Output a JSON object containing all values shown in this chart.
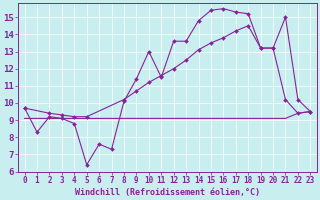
{
  "xlabel": "Windchill (Refroidissement éolien,°C)",
  "bg_color": "#c8eef0",
  "line_color": "#882299",
  "xlim_min": -0.5,
  "xlim_max": 23.5,
  "ylim_min": 6,
  "ylim_max": 15.8,
  "xticks": [
    0,
    1,
    2,
    3,
    4,
    5,
    6,
    7,
    8,
    9,
    10,
    11,
    12,
    13,
    14,
    15,
    16,
    17,
    18,
    19,
    20,
    21,
    22,
    23
  ],
  "yticks": [
    6,
    7,
    8,
    9,
    10,
    11,
    12,
    13,
    14,
    15
  ],
  "line1_x": [
    0,
    1,
    2,
    3,
    4,
    5,
    6,
    7,
    8,
    9,
    10,
    11,
    12,
    13,
    14,
    15,
    16,
    17,
    18,
    19,
    20,
    21,
    22,
    23
  ],
  "line1_y": [
    9.7,
    8.3,
    9.2,
    9.1,
    8.8,
    6.4,
    7.6,
    7.3,
    10.1,
    11.4,
    13.0,
    11.5,
    13.6,
    13.6,
    14.8,
    15.4,
    15.5,
    15.3,
    15.2,
    13.2,
    13.2,
    10.2,
    9.4,
    9.5
  ],
  "line2_x": [
    0,
    21,
    22,
    23
  ],
  "line2_y": [
    9.1,
    9.1,
    9.4,
    9.5
  ],
  "line3_x": [
    0,
    2,
    3,
    4,
    5,
    8,
    9,
    10,
    11,
    12,
    13,
    14,
    15,
    16,
    17,
    18,
    19,
    20,
    21,
    22,
    23
  ],
  "line3_y": [
    9.7,
    9.4,
    9.3,
    9.2,
    9.2,
    10.2,
    10.7,
    11.2,
    11.6,
    12.0,
    12.5,
    13.1,
    13.5,
    13.8,
    14.2,
    14.5,
    13.2,
    13.2,
    15.0,
    10.2,
    9.5
  ],
  "xlabel_fontsize": 6,
  "tick_fontsize": 5.5,
  "ytick_fontsize": 6.5
}
